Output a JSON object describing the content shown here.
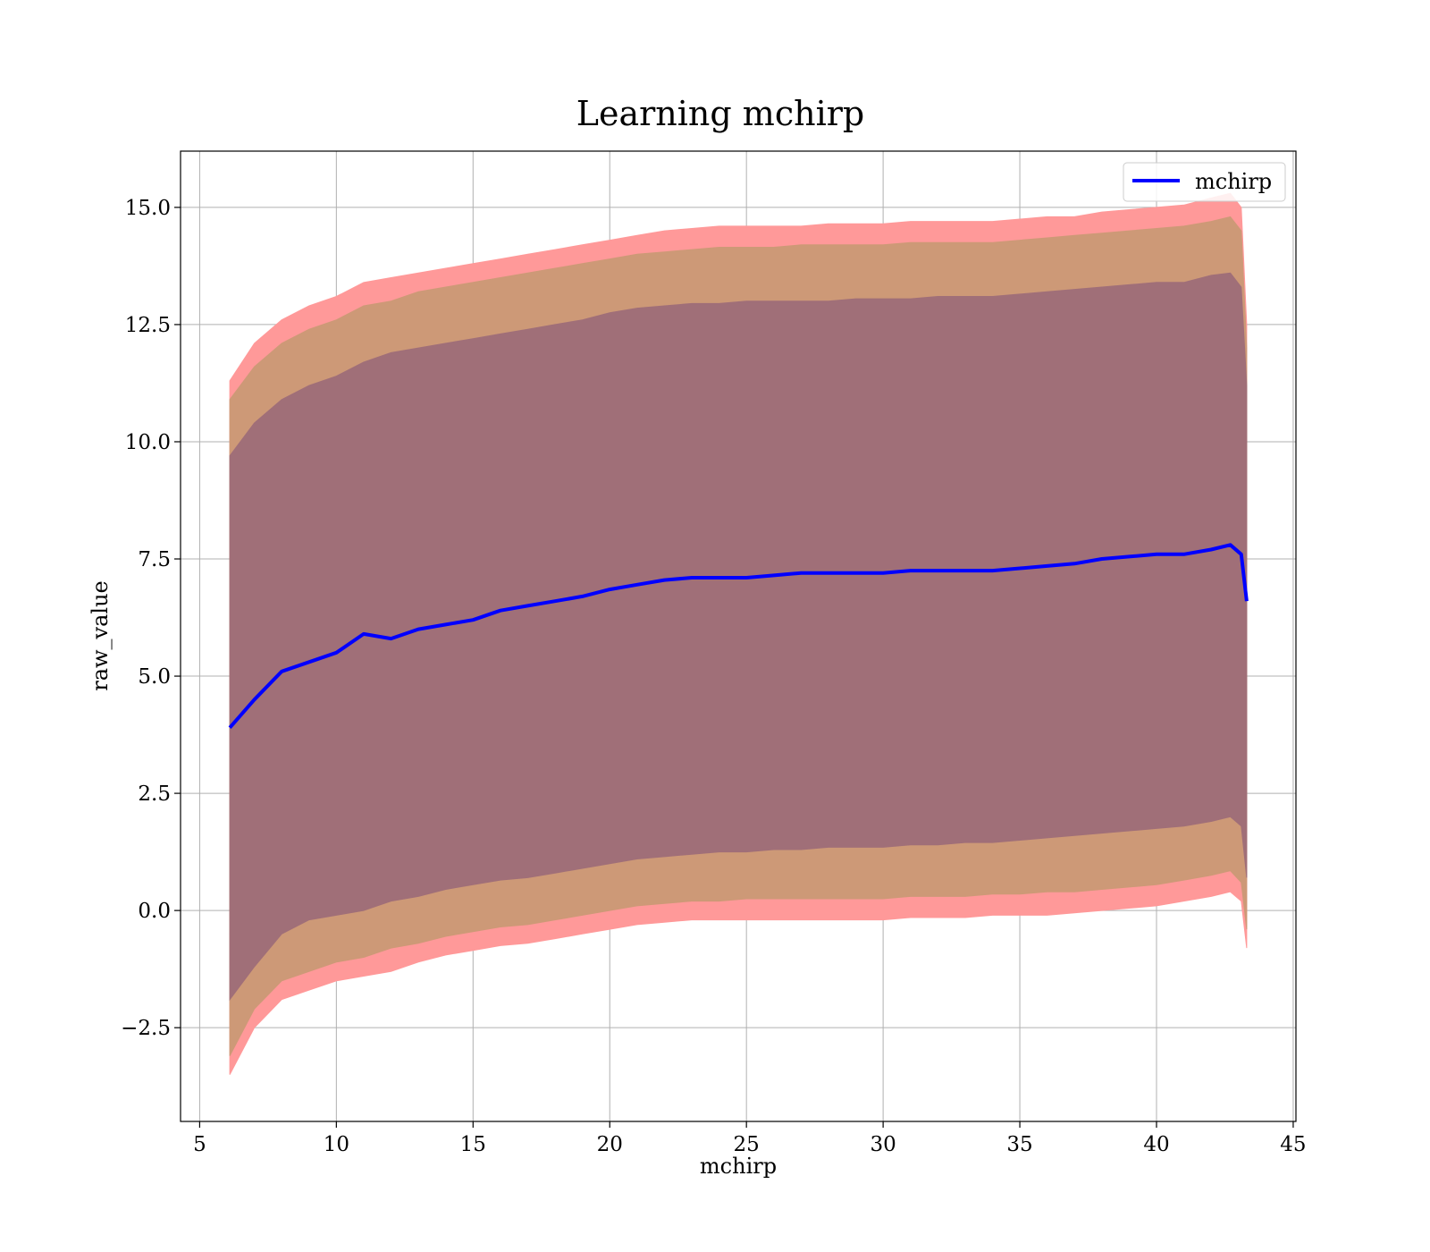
{
  "chart_data": {
    "type": "area",
    "title": "Learning mchirp",
    "xlabel": "mchirp",
    "ylabel": "raw_value",
    "xlim": [
      4.3,
      45.1
    ],
    "ylim": [
      -4.5,
      16.2
    ],
    "xticks": [
      5,
      10,
      15,
      20,
      25,
      30,
      35,
      40,
      45
    ],
    "xtick_labels": [
      "5",
      "10",
      "15",
      "20",
      "25",
      "30",
      "35",
      "40",
      "45"
    ],
    "yticks": [
      -2.5,
      0.0,
      2.5,
      5.0,
      7.5,
      10.0,
      12.5,
      15.0
    ],
    "ytick_labels": [
      "−2.5",
      "0.0",
      "2.5",
      "5.0",
      "7.5",
      "10.0",
      "12.5",
      "15.0"
    ],
    "grid": true,
    "legend": {
      "placement": "top-right",
      "entries": [
        "mchirp"
      ]
    },
    "x": [
      6.1,
      7,
      8,
      9,
      10,
      11,
      12,
      13,
      14,
      15,
      16,
      17,
      18,
      19,
      20,
      21,
      22,
      23,
      24,
      25,
      26,
      27,
      28,
      29,
      30,
      31,
      32,
      33,
      34,
      35,
      36,
      37,
      38,
      39,
      40,
      41,
      42,
      42.7,
      43.1,
      43.3
    ],
    "series": [
      {
        "name": "mchirp",
        "color": "#0000ff",
        "values": [
          3.9,
          4.5,
          5.1,
          5.3,
          5.5,
          5.9,
          5.8,
          6.0,
          6.1,
          6.2,
          6.4,
          6.5,
          6.6,
          6.7,
          6.85,
          6.95,
          7.05,
          7.1,
          7.1,
          7.1,
          7.15,
          7.2,
          7.2,
          7.2,
          7.2,
          7.25,
          7.25,
          7.25,
          7.25,
          7.3,
          7.35,
          7.4,
          7.5,
          7.55,
          7.6,
          7.6,
          7.7,
          7.8,
          7.6,
          6.6
        ]
      }
    ],
    "bands": [
      {
        "level": "outer",
        "color": "#ff9999",
        "upper": [
          11.3,
          12.1,
          12.6,
          12.9,
          13.1,
          13.4,
          13.5,
          13.6,
          13.7,
          13.8,
          13.9,
          14.0,
          14.1,
          14.2,
          14.3,
          14.4,
          14.5,
          14.55,
          14.6,
          14.6,
          14.6,
          14.6,
          14.65,
          14.65,
          14.65,
          14.7,
          14.7,
          14.7,
          14.7,
          14.75,
          14.8,
          14.8,
          14.9,
          14.95,
          15.0,
          15.05,
          15.2,
          15.3,
          15.0,
          12.5
        ],
        "lower": [
          -3.5,
          -2.5,
          -1.9,
          -1.7,
          -1.5,
          -1.4,
          -1.3,
          -1.1,
          -0.95,
          -0.85,
          -0.75,
          -0.7,
          -0.6,
          -0.5,
          -0.4,
          -0.3,
          -0.25,
          -0.2,
          -0.2,
          -0.2,
          -0.2,
          -0.2,
          -0.2,
          -0.2,
          -0.2,
          -0.15,
          -0.15,
          -0.15,
          -0.1,
          -0.1,
          -0.1,
          -0.05,
          0.0,
          0.05,
          0.1,
          0.2,
          0.3,
          0.4,
          0.2,
          -0.8
        ]
      },
      {
        "level": "middle",
        "color": "#cd9977",
        "upper": [
          10.9,
          11.6,
          12.1,
          12.4,
          12.6,
          12.9,
          13.0,
          13.2,
          13.3,
          13.4,
          13.5,
          13.6,
          13.7,
          13.8,
          13.9,
          14.0,
          14.05,
          14.1,
          14.15,
          14.15,
          14.15,
          14.2,
          14.2,
          14.2,
          14.2,
          14.25,
          14.25,
          14.25,
          14.25,
          14.3,
          14.35,
          14.4,
          14.45,
          14.5,
          14.55,
          14.6,
          14.7,
          14.8,
          14.5,
          12.0
        ],
        "lower": [
          -3.1,
          -2.1,
          -1.5,
          -1.3,
          -1.1,
          -1.0,
          -0.8,
          -0.7,
          -0.55,
          -0.45,
          -0.35,
          -0.3,
          -0.2,
          -0.1,
          0.0,
          0.1,
          0.15,
          0.2,
          0.2,
          0.25,
          0.25,
          0.25,
          0.25,
          0.25,
          0.25,
          0.3,
          0.3,
          0.3,
          0.35,
          0.35,
          0.4,
          0.4,
          0.45,
          0.5,
          0.55,
          0.65,
          0.75,
          0.85,
          0.6,
          -0.4
        ]
      },
      {
        "level": "inner",
        "color": "#a06f78",
        "upper": [
          9.7,
          10.4,
          10.9,
          11.2,
          11.4,
          11.7,
          11.9,
          12.0,
          12.1,
          12.2,
          12.3,
          12.4,
          12.5,
          12.6,
          12.75,
          12.85,
          12.9,
          12.95,
          12.95,
          13.0,
          13.0,
          13.0,
          13.0,
          13.05,
          13.05,
          13.05,
          13.1,
          13.1,
          13.1,
          13.15,
          13.2,
          13.25,
          13.3,
          13.35,
          13.4,
          13.4,
          13.55,
          13.6,
          13.3,
          11.2
        ],
        "lower": [
          -1.9,
          -1.2,
          -0.5,
          -0.2,
          -0.1,
          0.0,
          0.2,
          0.3,
          0.45,
          0.55,
          0.65,
          0.7,
          0.8,
          0.9,
          1.0,
          1.1,
          1.15,
          1.2,
          1.25,
          1.25,
          1.3,
          1.3,
          1.35,
          1.35,
          1.35,
          1.4,
          1.4,
          1.45,
          1.45,
          1.5,
          1.55,
          1.6,
          1.65,
          1.7,
          1.75,
          1.8,
          1.9,
          2.0,
          1.8,
          0.7
        ]
      }
    ]
  }
}
